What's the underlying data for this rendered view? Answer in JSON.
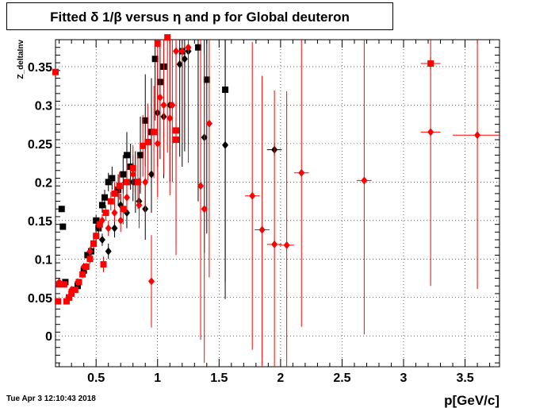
{
  "title": "Fitted δ 1/β versus η and p for Global deuteron",
  "timestamp": "Tue Apr  3 12:10:43 2018",
  "chart_data": {
    "type": "scatter",
    "title": "Fitted δ 1/β versus η and p for Global deuteron",
    "xlabel": "p[GeV/c]",
    "ylabel": "Z_deltaInv",
    "xlim": [
      0.17,
      3.78
    ],
    "ylim": [
      -0.04,
      0.385
    ],
    "grid": true,
    "x_ticks": [
      0.5,
      1,
      1.5,
      2,
      2.5,
      3,
      3.5
    ],
    "x_tick_labels": [
      "0.5",
      "1",
      "1.5",
      "2",
      "2.5",
      "3",
      "3.5"
    ],
    "y_ticks": [
      0,
      0.05,
      0.1,
      0.15,
      0.2,
      0.25,
      0.3,
      0.35
    ],
    "y_tick_labels": [
      "0",
      "0.05",
      "0.1",
      "0.15",
      "0.2",
      "0.25",
      "0.3",
      "0.35"
    ],
    "colors": {
      "black": "#000000",
      "red": "#ff0000"
    },
    "series": [
      {
        "color": "black",
        "marker": "square",
        "points": [
          [
            0.22,
            0.165,
            0.004
          ],
          [
            0.23,
            0.142,
            0.004
          ],
          [
            0.25,
            0.07,
            0.003
          ],
          [
            0.28,
            0.05,
            0.003
          ],
          [
            0.35,
            0.065,
            0.004
          ],
          [
            0.4,
            0.085,
            0.005
          ],
          [
            0.43,
            0.105,
            0.005
          ],
          [
            0.46,
            0.11,
            0.006
          ],
          [
            0.48,
            0.12,
            0.006
          ],
          [
            0.5,
            0.15,
            0.007
          ],
          [
            0.52,
            0.14,
            0.008
          ],
          [
            0.55,
            0.17,
            0.01
          ],
          [
            0.57,
            0.18,
            0.01
          ],
          [
            0.6,
            0.2,
            0.012
          ],
          [
            0.63,
            0.205,
            0.015
          ],
          [
            0.68,
            0.19,
            0.02
          ],
          [
            0.72,
            0.21,
            0.025
          ],
          [
            0.75,
            0.235,
            0.03
          ],
          [
            0.78,
            0.22,
            0.03
          ],
          [
            0.82,
            0.2,
            0.04
          ],
          [
            0.86,
            0.235,
            0.05
          ],
          [
            0.9,
            0.28,
            0.06
          ],
          [
            0.95,
            0.265,
            0.07
          ],
          [
            0.98,
            0.36,
            0.08
          ],
          [
            1.02,
            0.33,
            0.1
          ],
          [
            1.05,
            0.35,
            0.1
          ],
          [
            1.2,
            0.37,
            0.15
          ],
          [
            1.33,
            0.375,
            0.2
          ],
          [
            1.4,
            0.333,
            0.2
          ],
          [
            1.55,
            0.32,
            0.25
          ]
        ]
      },
      {
        "color": "black",
        "marker": "diamond",
        "points": [
          [
            0.55,
            0.125,
            0.008
          ],
          [
            0.6,
            0.11,
            0.01
          ],
          [
            0.65,
            0.14,
            0.012
          ],
          [
            0.7,
            0.17,
            0.015
          ],
          [
            0.75,
            0.16,
            0.02
          ],
          [
            0.8,
            0.2,
            0.025
          ],
          [
            0.85,
            0.175,
            0.03
          ],
          [
            0.9,
            0.165,
            0.04
          ],
          [
            0.95,
            0.21,
            0.05
          ],
          [
            1.0,
            0.29,
            0.07
          ],
          [
            1.05,
            0.285,
            0.08
          ],
          [
            1.1,
            0.3,
            0.1
          ],
          [
            1.18,
            0.353,
            0.12
          ],
          [
            1.22,
            0.36,
            0.12
          ],
          [
            1.25,
            0.37,
            0.12
          ],
          [
            1.38,
            0.258,
            0.15
          ],
          [
            1.55,
            0.248,
            0.2
          ],
          [
            1.95,
            0.242,
            0.008
          ]
        ]
      },
      {
        "color": "red",
        "marker": "square",
        "points": [
          [
            0.17,
            0.343,
            0.004
          ],
          [
            0.19,
            0.045,
            0.002
          ],
          [
            0.2,
            0.067,
            0.002
          ],
          [
            0.24,
            0.067,
            0.003
          ],
          [
            0.26,
            0.045,
            0.003
          ],
          [
            0.28,
            0.05,
            0.003
          ],
          [
            0.3,
            0.055,
            0.003
          ],
          [
            0.33,
            0.06,
            0.004
          ],
          [
            0.36,
            0.07,
            0.004
          ],
          [
            0.39,
            0.08,
            0.005
          ],
          [
            0.42,
            0.09,
            0.005
          ],
          [
            0.45,
            0.1,
            0.006
          ],
          [
            0.48,
            0.12,
            0.007
          ],
          [
            0.5,
            0.13,
            0.008
          ],
          [
            0.53,
            0.145,
            0.009
          ],
          [
            0.56,
            0.093,
            0.01
          ],
          [
            0.58,
            0.16,
            0.01
          ],
          [
            0.62,
            0.175,
            0.012
          ],
          [
            0.65,
            0.185,
            0.015
          ],
          [
            0.69,
            0.195,
            0.018
          ],
          [
            0.72,
            0.165,
            0.02
          ],
          [
            0.75,
            0.2,
            0.025
          ],
          [
            0.8,
            0.218,
            0.03
          ],
          [
            0.84,
            0.2,
            0.035
          ],
          [
            0.88,
            0.247,
            0.04
          ],
          [
            0.92,
            0.252,
            0.05
          ],
          [
            0.97,
            0.265,
            0.06
          ],
          [
            1.0,
            0.38,
            0.12
          ],
          [
            1.08,
            0.388,
            0.15
          ],
          [
            1.15,
            0.255,
            0.15
          ],
          [
            1.15,
            0.267,
            0.15
          ],
          [
            3.22,
            0.354,
            0.008
          ]
        ]
      },
      {
        "color": "red",
        "marker": "diamond",
        "points": [
          [
            0.2,
            0.07,
            0.003
          ],
          [
            0.3,
            0.06,
            0.004
          ],
          [
            0.35,
            0.07,
            0.004
          ],
          [
            0.4,
            0.09,
            0.005
          ],
          [
            0.45,
            0.11,
            0.006
          ],
          [
            0.5,
            0.13,
            0.007
          ],
          [
            0.55,
            0.15,
            0.008
          ],
          [
            0.6,
            0.14,
            0.01
          ],
          [
            0.65,
            0.16,
            0.012
          ],
          [
            0.7,
            0.15,
            0.015
          ],
          [
            0.75,
            0.18,
            0.02
          ],
          [
            0.8,
            0.21,
            0.025
          ],
          [
            0.85,
            0.17,
            0.03
          ],
          [
            0.9,
            0.2,
            0.04
          ],
          [
            0.95,
            0.071,
            0.06
          ],
          [
            1.0,
            0.25,
            0.07
          ],
          [
            1.02,
            0.31,
            0.08
          ],
          [
            1.05,
            0.3,
            0.09
          ],
          [
            1.1,
            0.283,
            0.1
          ],
          [
            1.12,
            0.3,
            0.1
          ],
          [
            1.15,
            0.37,
            0.12
          ],
          [
            1.2,
            0.37,
            0.12
          ],
          [
            1.25,
            0.375,
            0.15
          ],
          [
            1.35,
            0.195,
            0.2
          ],
          [
            1.38,
            0.165,
            0.2
          ],
          [
            1.42,
            0.276,
            0.2
          ],
          [
            1.77,
            0.182,
            0.2
          ],
          [
            1.85,
            0.138,
            0.2
          ],
          [
            1.95,
            0.119,
            0.2
          ],
          [
            2.05,
            0.118,
            0.2
          ],
          [
            2.17,
            0.212,
            0.2
          ],
          [
            2.68,
            0.202,
            0.2
          ],
          [
            3.22,
            0.265,
            0.2
          ],
          [
            3.6,
            0.261,
            0.2
          ]
        ]
      }
    ]
  }
}
